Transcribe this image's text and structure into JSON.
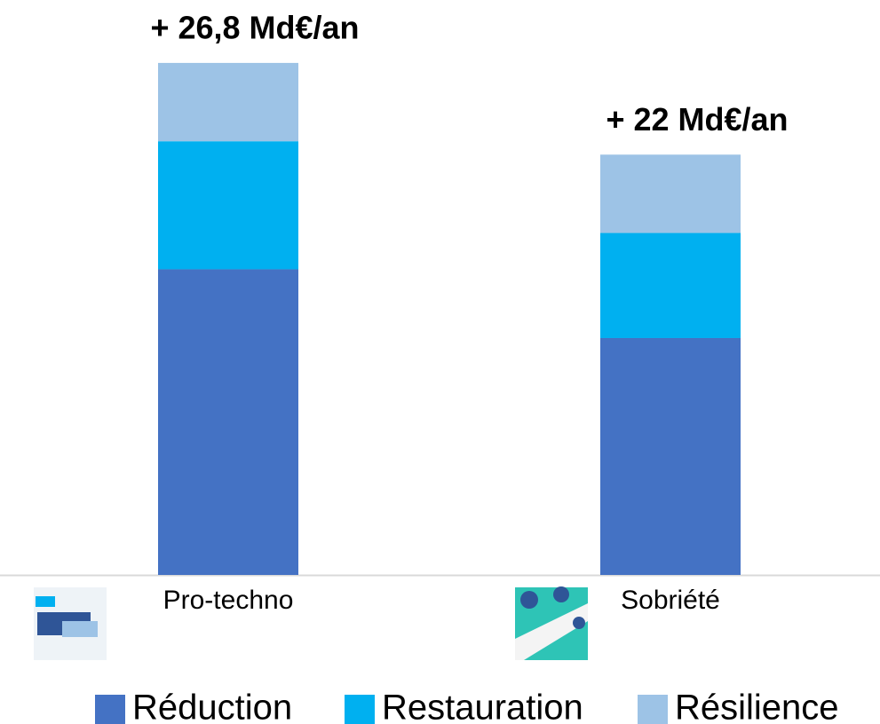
{
  "chart_data": {
    "type": "stacked-bar",
    "categories": [
      "Pro-techno",
      "Sobriété"
    ],
    "series": [
      {
        "name": "Réduction",
        "color": "#4472c4",
        "values": [
          16,
          12.4
        ]
      },
      {
        "name": "Restauration",
        "color": "#00b0f0",
        "values": [
          6.7,
          5.5
        ]
      },
      {
        "name": "Résilience",
        "color": "#9dc3e6",
        "values": [
          4.1,
          4.1
        ]
      }
    ],
    "total_labels": [
      "+ 26,8 Md€/an",
      "+ 22 Md€/an"
    ],
    "ylim": [
      0,
      30
    ],
    "legend": "bottom"
  }
}
